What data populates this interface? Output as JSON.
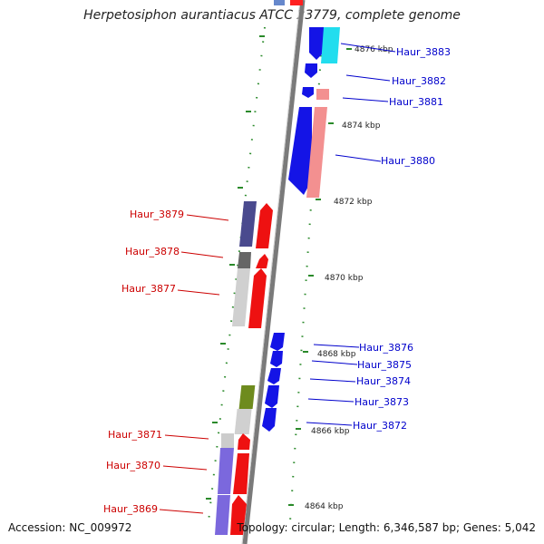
{
  "title": "Herpetosiphon aurantiacus ATCC 23779, complete genome",
  "accession": "Accession: NC_009972",
  "summary": "Topology: circular; Length: 6,346,587 bp; Genes: 5,042",
  "colors": {
    "right_label": "#0000cc",
    "left_label": "#cc0000",
    "backbone": "#888888",
    "tick": "#2a8a2a"
  },
  "kbp_marks": [
    "4876 kbp",
    "4874 kbp",
    "4872 kbp",
    "4870 kbp",
    "4868 kbp",
    "4866 kbp",
    "4864 kbp"
  ],
  "right_genes": [
    "Haur_3883",
    "Haur_3882",
    "Haur_3881",
    "Haur_3880",
    "Haur_3876",
    "Haur_3875",
    "Haur_3874",
    "Haur_3873",
    "Haur_3872"
  ],
  "left_genes": [
    "Haur_3879",
    "Haur_3878",
    "Haur_3877",
    "Haur_3871",
    "Haur_3870",
    "Haur_3869"
  ]
}
